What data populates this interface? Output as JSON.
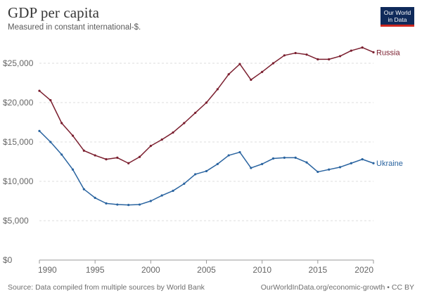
{
  "header": {
    "title": "GDP per capita",
    "subtitle": "Measured in constant international-$.",
    "logo_line1": "Our World",
    "logo_line2": "in Data"
  },
  "footer": {
    "source": "Source: Data compiled from multiple sources by World Bank",
    "attribution": "OurWorldInData.org/economic-growth • CC BY"
  },
  "colors": {
    "russia": "#7b1f2f",
    "ukraine": "#2a64a0",
    "grid": "#dddddd",
    "logo_bg": "#0f2a5a",
    "logo_accent": "#ce261e"
  },
  "chart_data": {
    "type": "line",
    "title": "GDP per capita",
    "subtitle": "Measured in constant international-$.",
    "x": [
      1990,
      1991,
      1992,
      1993,
      1994,
      1995,
      1996,
      1997,
      1998,
      1999,
      2000,
      2001,
      2002,
      2003,
      2004,
      2005,
      2006,
      2007,
      2008,
      2009,
      2010,
      2011,
      2012,
      2013,
      2014,
      2015,
      2016,
      2017,
      2018,
      2019,
      2020
    ],
    "series": [
      {
        "name": "Russia",
        "values": [
          21500,
          20300,
          17400,
          15800,
          13900,
          13300,
          12800,
          13000,
          12300,
          13100,
          14500,
          15300,
          16200,
          17400,
          18700,
          20000,
          21700,
          23600,
          24900,
          22900,
          23900,
          25000,
          26000,
          26300,
          26100,
          25500,
          25500,
          25900,
          26600,
          27000,
          26400
        ]
      },
      {
        "name": "Ukraine",
        "values": [
          16400,
          15000,
          13400,
          11500,
          9000,
          7900,
          7200,
          7050,
          7000,
          7050,
          7500,
          8200,
          8800,
          9700,
          10900,
          11300,
          12200,
          13300,
          13700,
          11700,
          12200,
          12900,
          13000,
          13000,
          12400,
          11200,
          11500,
          11800,
          12300,
          12800,
          12300
        ]
      }
    ],
    "xlim": [
      1990,
      2020
    ],
    "ylim": [
      0,
      27500
    ],
    "x_ticks": [
      1990,
      1995,
      2000,
      2005,
      2010,
      2015,
      2020
    ],
    "x_tick_labels": [
      "1990",
      "1995",
      "2000",
      "2005",
      "2010",
      "2015",
      "2020"
    ],
    "y_ticks": [
      0,
      5000,
      10000,
      15000,
      20000,
      25000
    ],
    "y_tick_labels": [
      "$0",
      "$5,000",
      "$10,000",
      "$15,000",
      "$20,000",
      "$25,000"
    ],
    "grid": true,
    "legend": "inline labels at line ends"
  }
}
